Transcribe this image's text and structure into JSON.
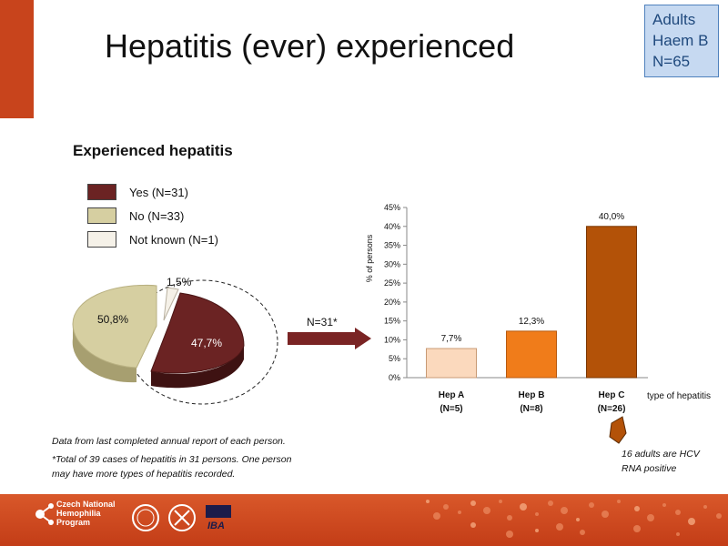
{
  "slide": {
    "title": "Hepatitis (ever) experienced",
    "info_box": {
      "line1": "Adults",
      "line2": "Haem B",
      "line3": "N=65"
    },
    "subtitle": "Experienced hepatitis",
    "arrow_label": "N=31*",
    "note1": "Data from last completed annual report of each person.",
    "note2a": "*Total of 39 cases of hepatitis in 31 persons. One person",
    "note2b": "may have more types of hepatitis recorded.",
    "callout_line1": "16 adults are HCV",
    "callout_line2": "RNA positive"
  },
  "footer": {
    "logo_line1": "Czech National",
    "logo_line2": "Hemophilia",
    "logo_line3": "Program",
    "logo_text_iba": "IBA"
  },
  "colors": {
    "accent": "#c8441c",
    "pie_yes": "#6b2323",
    "pie_no": "#d6cfa1",
    "pie_unknown": "#f5f1e8",
    "hep_a": "#fbd9bd",
    "hep_b": "#f07c1a",
    "hep_c": "#b35208"
  },
  "chart_data": [
    {
      "type": "pie",
      "legend_placement": "top-left",
      "legend": [
        "Yes (N=31)",
        "No (N=33)",
        "Not known (N=1)"
      ],
      "slices": [
        {
          "name": "Yes (N=31)",
          "value": 47.7,
          "label": "47,7%"
        },
        {
          "name": "No (N=33)",
          "value": 50.8,
          "label": "50,8%"
        },
        {
          "name": "Not known (N=1)",
          "value": 1.5,
          "label": "1,5%"
        }
      ]
    },
    {
      "type": "bar",
      "categories": [
        "Hep A",
        "Hep B",
        "Hep C"
      ],
      "category_counts": [
        "(N=5)",
        "(N=8)",
        "(N=26)"
      ],
      "values": [
        7.7,
        12.3,
        40.0
      ],
      "value_labels": [
        "7,7%",
        "12,3%",
        "40,0%"
      ],
      "ylabel": "% of persons",
      "xlabel": "type of hepatitis",
      "ylim": [
        0,
        45
      ],
      "yticks": [
        "0%",
        "5%",
        "10%",
        "15%",
        "20%",
        "25%",
        "30%",
        "35%",
        "40%",
        "45%"
      ],
      "grid": false
    }
  ]
}
